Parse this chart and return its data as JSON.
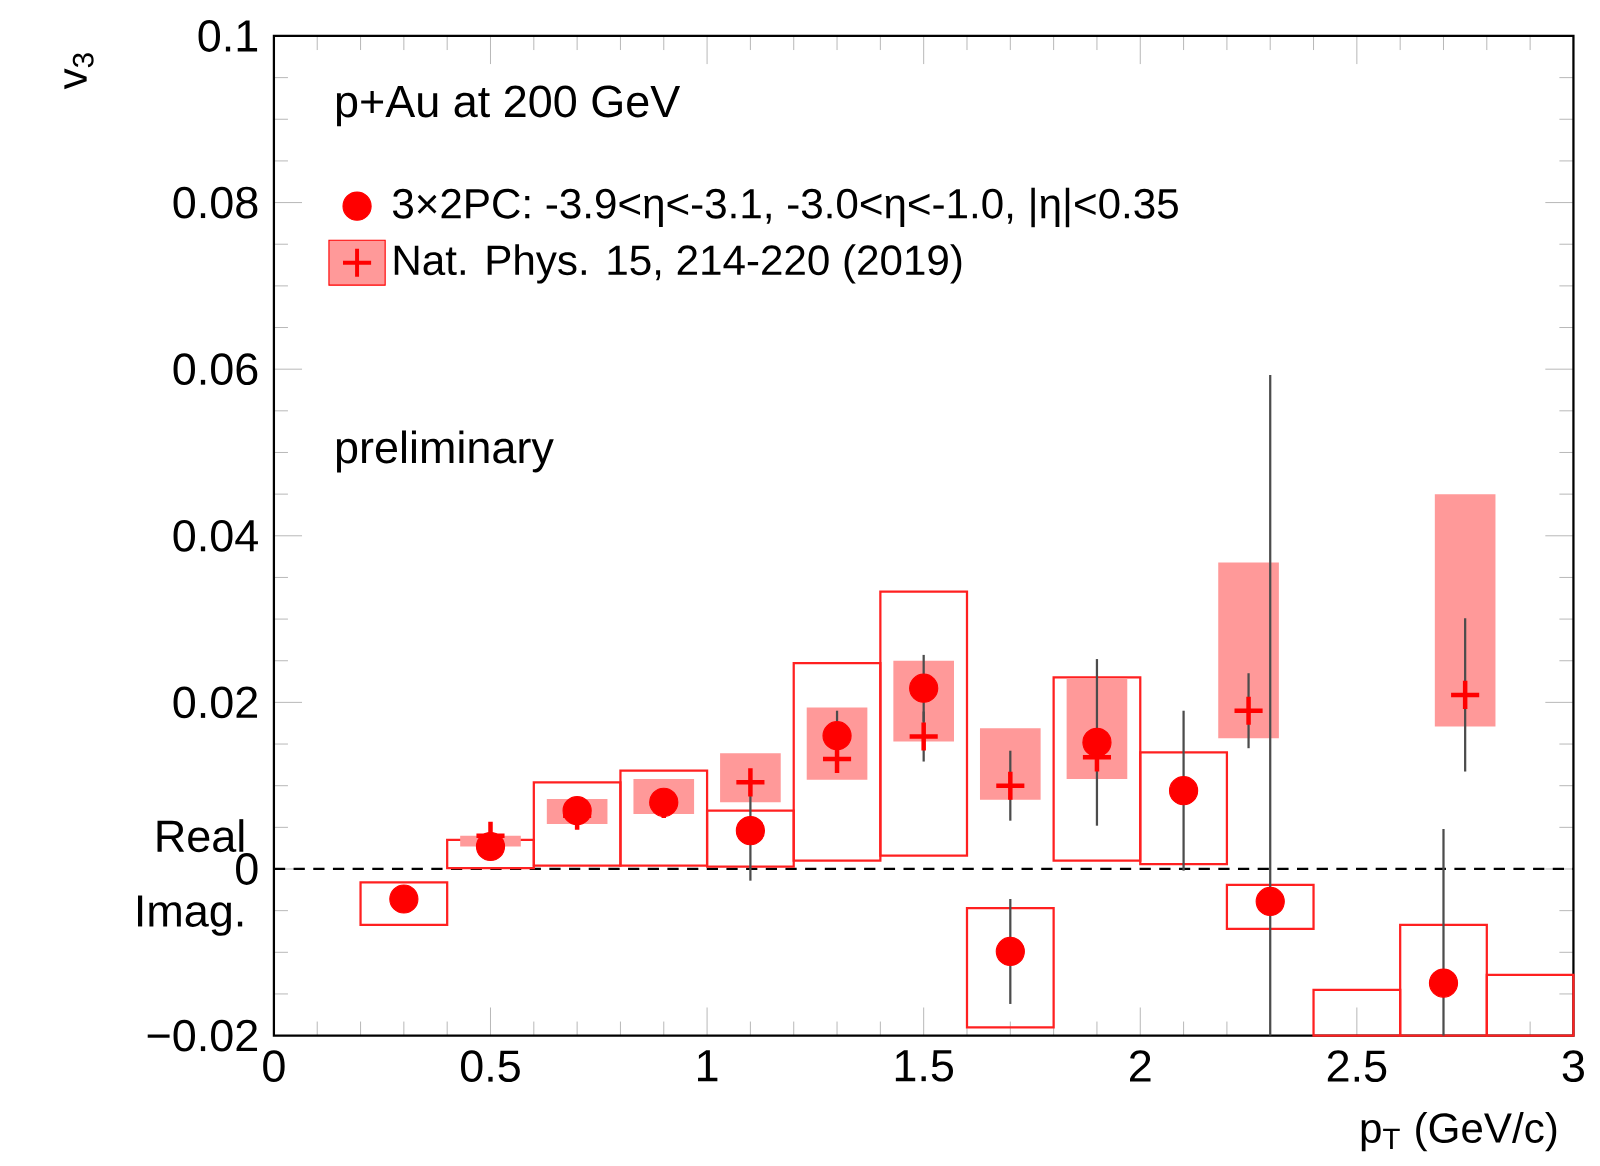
{
  "chart_data": {
    "type": "scatter",
    "xlabel": "p$_{T}$ (GeV/c)",
    "ylabel": "v$_{3}$",
    "xlim": [
      0,
      3
    ],
    "xticks": [
      0,
      0.5,
      1,
      1.5,
      2,
      2.5,
      3
    ],
    "ylim": [
      -0.02,
      0.1
    ],
    "yticks": [
      {
        "value": -0.02,
        "label": "−0.02"
      },
      0,
      0.02,
      0.04,
      0.06,
      0.08,
      0.1
    ],
    "legend": "top left",
    "annotations": [
      "p+Au at 200 GeV",
      "preliminary",
      "Real",
      "Imag."
    ],
    "ref_lines": [
      {
        "axis": "y",
        "value": 0,
        "line_style": "dashed",
        "color": "#000000"
      }
    ],
    "series": [
      {
        "type": "bar",
        "color": "#ff2020",
        "x": [
          0.3,
          0.5,
          0.7,
          0.9,
          1.1,
          1.3,
          1.5,
          1.7,
          1.9,
          2.1,
          2.3,
          2.5,
          2.7,
          2.9
        ],
        "base": [
          -0.0067,
          0.0001,
          0.0004,
          0.0004,
          0.0003,
          0.001,
          0.0016,
          -0.019,
          0.001,
          0.0006,
          -0.0072,
          -0.02,
          -0.02,
          -0.02
        ],
        "values": [
          0.0051,
          0.0034,
          0.01,
          0.0114,
          0.0067,
          0.0237,
          0.0317,
          0.0143,
          0.022,
          0.0134,
          0.0053,
          0.0055,
          0.0133,
          0.0073
        ]
      },
      {
        "type": "bar",
        "color": "#ff9999",
        "x": [
          0.5,
          0.7,
          0.9,
          1.1,
          1.3,
          1.5,
          1.7,
          1.9,
          2.25,
          2.75
        ],
        "base": [
          0.0027,
          0.0054,
          0.0066,
          0.008,
          0.0107,
          0.0153,
          0.0083,
          0.0108,
          0.0157,
          0.0171
        ],
        "values": [
          0.0013,
          0.003,
          0.0042,
          0.0059,
          0.0087,
          0.0097,
          0.0086,
          0.0121,
          0.0211,
          0.0279
        ]
      },
      {
        "name": "3×2PC: -3.9<η<-3.1, -3.0<η<-1.0, |η|<0.35",
        "color": "#ff0000",
        "marker": "circle",
        "x": [
          0.3,
          0.5,
          0.7,
          0.9,
          1.1,
          1.3,
          1.5,
          1.7,
          1.9,
          2.1,
          2.3,
          2.7
        ],
        "values": [
          -0.0036,
          0.0027,
          0.007,
          0.008,
          0.0046,
          0.016,
          0.0217,
          -0.0099,
          0.0152,
          0.0094,
          -0.0039,
          -0.0137
        ],
        "errors": [
          null,
          null,
          null,
          null,
          0.006,
          0.003,
          0.004,
          0.0063,
          0.01,
          0.0096,
          [
            -0.02,
            0.0593
          ],
          [
            -0.02,
            0.0048
          ]
        ]
      },
      {
        "name": "Nat. Phys. 15, 214-220 (2019)",
        "color": "#ff0000",
        "marker": "cross",
        "x": [
          0.5,
          0.7,
          0.9,
          1.1,
          1.3,
          1.5,
          1.7,
          1.9,
          2.25,
          2.75
        ],
        "values": [
          0.004,
          0.0064,
          0.0078,
          0.0104,
          0.0132,
          0.0159,
          0.01,
          0.0134,
          0.019,
          0.0209
        ],
        "errors": [
          null,
          null,
          null,
          null,
          null,
          0.003,
          0.0042,
          null,
          0.0045,
          0.0092
        ]
      }
    ]
  }
}
